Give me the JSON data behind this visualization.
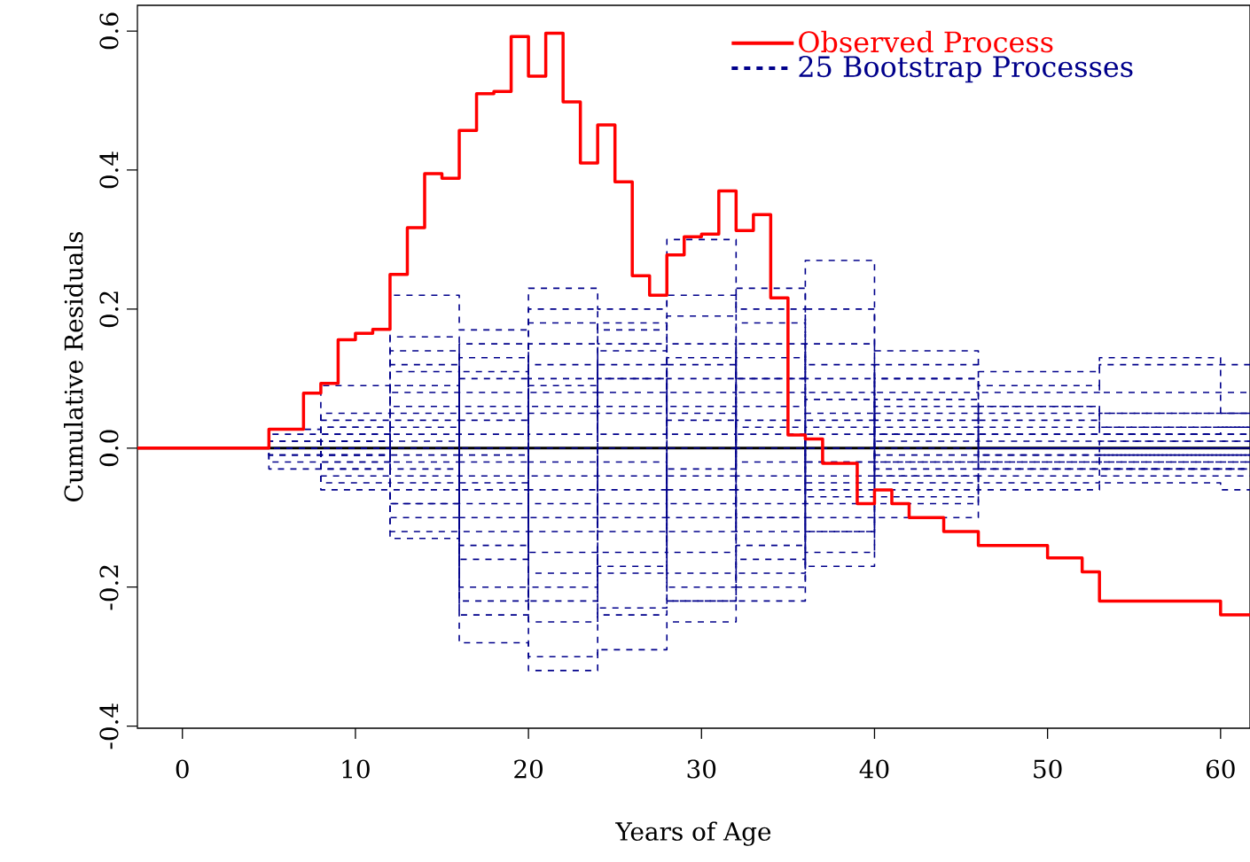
{
  "chart_data": {
    "type": "step",
    "xlabel": "Years of Age",
    "ylabel": "Cumulative Residuals",
    "xlim": [
      -2.6,
      61.7
    ],
    "ylim": [
      -0.403,
      0.637
    ],
    "xticks": [
      0,
      10,
      20,
      30,
      40,
      50,
      60
    ],
    "yticks": [
      -0.4,
      -0.2,
      {
        "value": 0,
        "label": "0.0"
      },
      0.2,
      0.4,
      0.6
    ],
    "legend": "top right",
    "grid": false,
    "ref_lines": [
      {
        "axis": "y",
        "value": 0,
        "color": "#000000"
      }
    ],
    "series": [
      {
        "name": "Observed Process",
        "color": "#ff0000",
        "line_style": "solid",
        "x": [
          -2.6,
          5,
          7,
          8,
          9,
          10,
          11,
          12,
          13,
          14,
          15,
          16,
          17,
          18,
          19,
          20,
          21,
          22,
          23,
          24,
          25,
          26,
          27,
          28,
          29,
          30,
          31,
          32,
          33,
          34,
          35,
          36,
          37,
          39,
          40,
          41,
          42,
          44,
          46,
          50,
          52,
          53,
          60,
          61.7
        ],
        "values": [
          0,
          0.027,
          0.079,
          0.093,
          0.156,
          0.165,
          0.171,
          0.25,
          0.317,
          0.395,
          0.388,
          0.457,
          0.51,
          0.513,
          0.592,
          0.535,
          0.597,
          0.498,
          0.41,
          0.465,
          0.383,
          0.248,
          0.22,
          0.278,
          0.304,
          0.308,
          0.37,
          0.313,
          0.336,
          0.216,
          0.019,
          0.013,
          -0.022,
          -0.08,
          -0.06,
          -0.08,
          -0.1,
          -0.12,
          -0.14,
          -0.158,
          -0.178,
          -0.22,
          -0.24,
          -0.24
        ]
      },
      {
        "name": "25 Bootstrap Processes",
        "color": "#00008b",
        "line_style": "dashed",
        "x": [
          -2.6,
          5,
          8,
          12,
          16,
          20,
          24,
          28,
          32,
          36,
          40,
          46,
          53,
          60,
          61.7
        ],
        "values": [
          0,
          0.027,
          0.09,
          0.22,
          0.17,
          0.23,
          0.2,
          0.3,
          0.2,
          0.27,
          0.14,
          0.11,
          0.12,
          0.12,
          0.12
        ]
      },
      {
        "color": "#00008b",
        "line_style": "dashed",
        "x": [
          -2.6,
          5,
          8,
          12,
          16,
          20,
          24,
          28,
          32,
          36,
          40,
          46,
          53,
          60,
          61.7
        ],
        "values": [
          0,
          -0.03,
          -0.06,
          -0.12,
          -0.28,
          -0.32,
          -0.29,
          -0.25,
          -0.22,
          -0.15,
          -0.1,
          -0.06,
          -0.05,
          -0.06,
          -0.06
        ]
      },
      {
        "color": "#00008b",
        "line_style": "dashed",
        "x": [
          -2.6,
          5,
          8,
          12,
          16,
          20,
          24,
          28,
          32,
          36,
          40,
          46,
          53,
          60,
          61.7
        ],
        "values": [
          0,
          0.02,
          0.05,
          0.14,
          0.1,
          0.18,
          0.15,
          0.19,
          0.23,
          0.12,
          0.1,
          0.09,
          0.08,
          0.08,
          0.08
        ]
      },
      {
        "color": "#00008b",
        "line_style": "dashed",
        "x": [
          -2.6,
          5,
          8,
          12,
          16,
          20,
          24,
          28,
          32,
          36,
          40,
          46,
          53,
          60,
          61.7
        ],
        "values": [
          0,
          -0.02,
          -0.05,
          -0.1,
          -0.2,
          -0.3,
          -0.23,
          -0.22,
          -0.18,
          -0.12,
          -0.08,
          -0.05,
          -0.04,
          -0.04,
          -0.04
        ]
      },
      {
        "color": "#00008b",
        "line_style": "dashed",
        "x": [
          -2.6,
          5,
          8,
          12,
          16,
          20,
          24,
          28,
          32,
          36,
          40,
          46,
          53,
          60,
          61.7
        ],
        "values": [
          0,
          0.01,
          0.03,
          0.08,
          0.06,
          0.12,
          0.1,
          0.15,
          0.1,
          0.15,
          0.08,
          0.06,
          0.05,
          0.05,
          0.05
        ]
      },
      {
        "color": "#00008b",
        "line_style": "dashed",
        "x": [
          -2.6,
          5,
          8,
          12,
          16,
          20,
          24,
          28,
          32,
          36,
          40,
          46,
          53,
          60,
          61.7
        ],
        "values": [
          0,
          -0.01,
          -0.03,
          -0.06,
          -0.12,
          -0.22,
          -0.17,
          -0.18,
          -0.14,
          -0.1,
          -0.06,
          -0.03,
          -0.03,
          -0.03,
          -0.03
        ]
      },
      {
        "color": "#00008b",
        "line_style": "dashed",
        "x": [
          -2.6,
          5,
          8,
          12,
          16,
          20,
          24,
          28,
          32,
          36,
          40,
          46,
          53,
          60,
          61.7
        ],
        "values": [
          0,
          0,
          0.02,
          0.05,
          0.13,
          0.09,
          0.06,
          0.1,
          0.13,
          0.07,
          0.05,
          0.04,
          0.05,
          0.05,
          0.05
        ]
      },
      {
        "color": "#00008b",
        "line_style": "dashed",
        "x": [
          -2.6,
          5,
          8,
          12,
          16,
          20,
          24,
          28,
          32,
          36,
          40,
          46,
          53,
          60,
          61.7
        ],
        "values": [
          0,
          0,
          -0.02,
          -0.04,
          -0.08,
          -0.15,
          -0.24,
          -0.12,
          -0.1,
          -0.07,
          -0.04,
          -0.02,
          -0.02,
          -0.02,
          -0.02
        ]
      },
      {
        "color": "#00008b",
        "line_style": "dashed",
        "x": [
          -2.6,
          5,
          8,
          12,
          16,
          20,
          24,
          28,
          32,
          36,
          40,
          46,
          53,
          60,
          61.7
        ],
        "values": [
          0,
          0.01,
          0.01,
          0.11,
          0.04,
          0.06,
          0.14,
          0.08,
          0.06,
          0.1,
          0.04,
          0.03,
          0.03,
          0.03,
          0.03
        ]
      },
      {
        "color": "#00008b",
        "line_style": "dashed",
        "x": [
          -2.6,
          5,
          8,
          12,
          16,
          20,
          24,
          28,
          32,
          36,
          40,
          46,
          53,
          60,
          61.7
        ],
        "values": [
          0,
          -0.01,
          -0.01,
          -0.08,
          -0.16,
          -0.1,
          -0.08,
          -0.2,
          -0.16,
          -0.04,
          -0.03,
          -0.01,
          -0.01,
          -0.01,
          -0.01
        ]
      },
      {
        "color": "#00008b",
        "line_style": "dashed",
        "x": [
          -2.6,
          5,
          8,
          12,
          16,
          20,
          24,
          28,
          32,
          36,
          40,
          46,
          53,
          60,
          61.7
        ],
        "values": [
          0,
          0,
          0.04,
          0.02,
          0.02,
          0.15,
          0.05,
          0.02,
          0.04,
          0.04,
          0.03,
          0.02,
          0.02,
          0.02,
          0.02
        ]
      },
      {
        "color": "#00008b",
        "line_style": "dashed",
        "x": [
          -2.6,
          5,
          8,
          12,
          16,
          20,
          24,
          28,
          32,
          36,
          40,
          46,
          53,
          60,
          61.7
        ],
        "values": [
          0,
          0,
          -0.04,
          -0.02,
          -0.05,
          -0.06,
          -0.12,
          -0.06,
          -0.08,
          -0.05,
          -0.02,
          0,
          -0.01,
          -0.01,
          -0.01
        ]
      },
      {
        "color": "#00008b",
        "line_style": "dashed",
        "x": [
          -2.6,
          5,
          8,
          12,
          16,
          20,
          24,
          28,
          32,
          36,
          40,
          46,
          53,
          60,
          61.7
        ],
        "values": [
          0,
          0,
          0,
          0,
          0.08,
          0.02,
          0.1,
          0.05,
          0,
          0.02,
          0.02,
          0.01,
          0.01,
          0.01,
          0.01
        ]
      },
      {
        "color": "#00008b",
        "line_style": "dashed",
        "x": [
          -2.6,
          5,
          8,
          12,
          16,
          20,
          24,
          28,
          32,
          36,
          40,
          46,
          53,
          60,
          61.7
        ],
        "values": [
          0,
          0,
          0,
          -0.01,
          -0.02,
          -0.04,
          -0.04,
          -0.1,
          -0.04,
          -0.02,
          -0.01,
          0,
          0,
          0,
          0
        ]
      },
      {
        "color": "#00008b",
        "line_style": "dashed",
        "x": [
          -2.6,
          5,
          8,
          12,
          16,
          20,
          24,
          28,
          32,
          36,
          40,
          46,
          53,
          60,
          61.7
        ],
        "values": [
          0,
          0,
          0.01,
          0.06,
          -0.01,
          0.08,
          0.02,
          0.12,
          0.08,
          -0.02,
          0,
          0,
          0.01,
          0.01,
          0.01
        ]
      },
      {
        "color": "#00008b",
        "line_style": "dashed",
        "x": [
          -2.6,
          5,
          8,
          12,
          16,
          20,
          24,
          28,
          32,
          36,
          40,
          46,
          53,
          60,
          61.7
        ],
        "values": [
          0,
          0,
          -0.01,
          0.03,
          -0.1,
          -0.02,
          -0.06,
          0,
          -0.02,
          0.05,
          -0.02,
          -0.02,
          -0.02,
          -0.02,
          -0.02
        ]
      },
      {
        "color": "#00008b",
        "line_style": "dashed",
        "x": [
          -2.6,
          5,
          8,
          12,
          16,
          20,
          24,
          28,
          32,
          36,
          40,
          46,
          53,
          60,
          61.7
        ],
        "values": [
          0,
          0,
          0.02,
          -0.05,
          0,
          -0.18,
          0,
          -0.04,
          0.02,
          -0.06,
          0.06,
          0.05,
          0.02,
          0.03,
          0.03
        ]
      },
      {
        "color": "#00008b",
        "line_style": "dashed",
        "x": [
          -2.6,
          5,
          8,
          12,
          16,
          20,
          24,
          28,
          32,
          36,
          40,
          46,
          53,
          60,
          61.7
        ],
        "values": [
          0,
          0,
          -0.02,
          0.09,
          -0.14,
          0,
          -0.18,
          0.04,
          -0.06,
          0.08,
          -0.05,
          -0.03,
          -0.03,
          -0.03,
          -0.03
        ]
      },
      {
        "color": "#00008b",
        "line_style": "dashed",
        "x": [
          -2.6,
          5,
          8,
          12,
          16,
          20,
          24,
          28,
          32,
          36,
          40,
          46,
          53,
          60,
          61.7
        ],
        "values": [
          0,
          0,
          0.03,
          -0.03,
          0.05,
          0.05,
          -0.02,
          -0.15,
          0.15,
          -0.08,
          0.01,
          0.06,
          0.03,
          0.03,
          0.03
        ]
      },
      {
        "color": "#00008b",
        "line_style": "dashed",
        "x": [
          -2.6,
          5,
          8,
          12,
          16,
          20,
          24,
          28,
          32,
          36,
          40,
          46,
          53,
          60,
          61.7
        ],
        "values": [
          0,
          0,
          -0.03,
          0.01,
          -0.06,
          -0.08,
          0.08,
          0.06,
          -0.12,
          0.03,
          -0.04,
          -0.04,
          -0.01,
          -0.01,
          -0.01
        ]
      },
      {
        "color": "#00008b",
        "line_style": "dashed",
        "x": [
          -2.6,
          5,
          8,
          12,
          16,
          20,
          24,
          28,
          32,
          36,
          40,
          46,
          53,
          60,
          61.7
        ],
        "values": [
          0,
          0,
          0,
          -0.13,
          0.11,
          -0.12,
          -0.1,
          0.13,
          0.03,
          0,
          0.07,
          0,
          0,
          0,
          0
        ]
      },
      {
        "color": "#00008b",
        "line_style": "dashed",
        "x": [
          -2.6,
          5,
          8,
          12,
          16,
          20,
          24,
          28,
          32,
          36,
          40,
          46,
          53,
          60,
          61.7
        ],
        "values": [
          0,
          0,
          0,
          0.12,
          -0.22,
          0.1,
          0.12,
          -0.08,
          -0.1,
          -0.12,
          -0.07,
          0.02,
          0.02,
          0.02,
          0.02
        ]
      },
      {
        "color": "#00008b",
        "line_style": "dashed",
        "x": [
          -2.6,
          5,
          8,
          12,
          16,
          20,
          24,
          28,
          32,
          36,
          40,
          46,
          53,
          60,
          61.7
        ],
        "values": [
          0,
          0,
          0.01,
          -0.08,
          0.15,
          -0.25,
          -0.15,
          -0.03,
          0.1,
          0.2,
          0.02,
          -0.01,
          0,
          0,
          0
        ]
      },
      {
        "color": "#00008b",
        "line_style": "dashed",
        "x": [
          -2.6,
          5,
          8,
          12,
          16,
          20,
          24,
          28,
          32,
          36,
          40,
          46,
          53,
          60,
          61.7
        ],
        "values": [
          0,
          0,
          -0.01,
          0.16,
          -0.04,
          0.2,
          0.17,
          0.22,
          -0.2,
          0,
          0.12,
          0.08,
          0.13,
          0.05,
          0.05
        ]
      },
      {
        "color": "#00008b",
        "line_style": "dashed",
        "x": [
          -2.6,
          5,
          8,
          12,
          16,
          20,
          24,
          28,
          32,
          36,
          40,
          46,
          53,
          60,
          61.7
        ],
        "values": [
          0,
          0,
          0,
          0.04,
          -0.24,
          -0.2,
          0.18,
          -0.22,
          0.18,
          -0.17,
          0.1,
          0,
          -0.03,
          -0.03,
          -0.03
        ]
      }
    ]
  }
}
